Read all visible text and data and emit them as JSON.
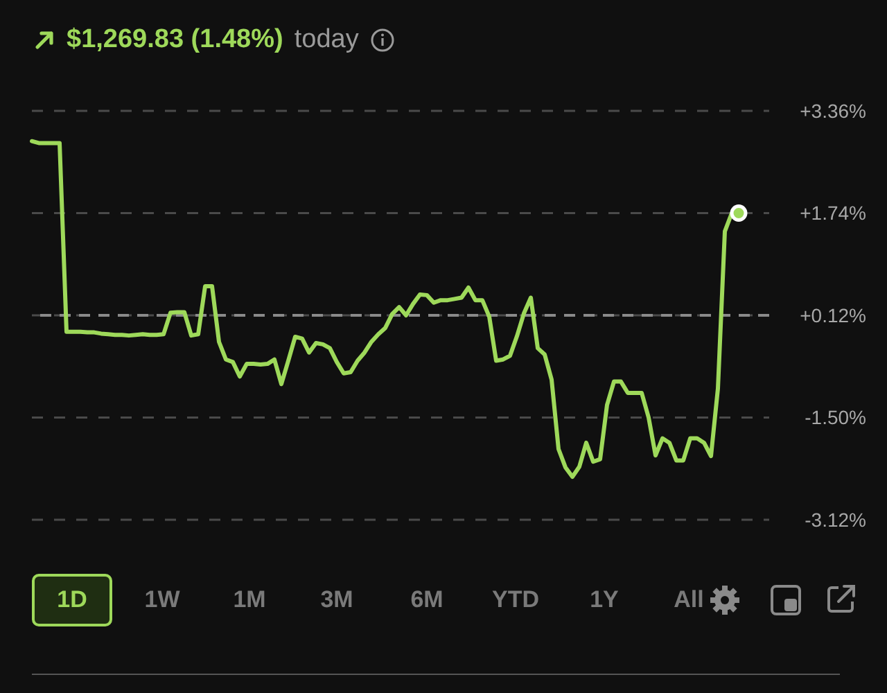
{
  "chart_data": {
    "type": "line",
    "title": "$1,269.83 (1.48%)",
    "subtitle": "today",
    "categories": [
      null,
      null,
      null,
      null,
      null,
      null,
      null,
      null,
      null,
      null,
      null,
      null,
      null,
      null,
      null,
      null,
      null,
      null,
      null,
      null,
      null,
      null,
      null,
      null,
      null,
      null,
      null,
      null,
      null,
      null,
      null,
      null,
      null,
      null,
      null,
      null,
      null,
      null,
      null,
      null,
      null,
      null,
      null,
      null,
      null,
      null,
      null,
      null,
      null,
      null,
      null,
      null,
      null,
      null,
      null,
      null,
      null,
      null,
      null,
      null,
      null,
      null,
      null,
      null,
      null,
      null,
      null,
      null,
      null,
      null,
      null,
      null,
      null,
      null,
      null,
      null,
      null,
      null,
      null,
      null,
      null,
      null,
      null,
      null,
      null,
      null,
      null,
      null,
      null,
      null,
      null,
      null,
      null,
      null,
      null,
      null,
      null,
      null,
      null,
      null,
      null,
      null,
      null
    ],
    "series": [
      {
        "color": "#9ed95a",
        "values": [
          2.88,
          2.85,
          2.85,
          2.85,
          2.85,
          -0.14,
          -0.14,
          -0.14,
          -0.15,
          -0.15,
          -0.17,
          -0.18,
          -0.19,
          -0.19,
          -0.2,
          -0.19,
          -0.18,
          -0.19,
          -0.19,
          -0.18,
          0.16,
          0.17,
          0.17,
          -0.2,
          -0.18,
          0.58,
          0.58,
          -0.3,
          -0.58,
          -0.62,
          -0.85,
          -0.65,
          -0.65,
          -0.66,
          -0.65,
          -0.58,
          -0.97,
          -0.6,
          -0.22,
          -0.25,
          -0.47,
          -0.32,
          -0.34,
          -0.4,
          -0.62,
          -0.8,
          -0.78,
          -0.6,
          -0.47,
          -0.3,
          -0.18,
          -0.08,
          0.14,
          0.25,
          0.12,
          0.3,
          0.45,
          0.44,
          0.32,
          0.36,
          0.36,
          0.38,
          0.4,
          0.56,
          0.36,
          0.36,
          0.1,
          -0.6,
          -0.58,
          -0.52,
          -0.21,
          0.15,
          0.4,
          -0.4,
          -0.5,
          -0.9,
          -2.0,
          -2.29,
          -2.44,
          -2.28,
          -1.9,
          -2.2,
          -2.16,
          -1.3,
          -0.93,
          -0.93,
          -1.11,
          -1.11,
          -1.11,
          -1.5,
          -2.1,
          -1.83,
          -1.9,
          -2.18,
          -2.18,
          -1.83,
          -1.83,
          -1.9,
          -2.11,
          -1.04,
          1.45,
          1.74,
          1.74
        ]
      }
    ],
    "ylim": [
      -3.12,
      3.36
    ],
    "yticks": [
      {
        "value": 3.36,
        "label": "+3.36%"
      },
      {
        "value": 1.74,
        "label": "+1.74%"
      },
      {
        "value": 0.12,
        "label": "+0.12%"
      },
      {
        "value": -1.5,
        "label": "-1.50%"
      },
      {
        "value": -3.12,
        "label": "-3.12%"
      }
    ],
    "grid": "y",
    "ref_lines": [
      {
        "axis": "y",
        "value": 0.12,
        "color": "#8a8a8a",
        "line_style": "dashed"
      }
    ],
    "annotations": [
      "1D",
      "1W",
      "1M",
      "3M",
      "6M",
      "YTD",
      "1Y",
      "All"
    ]
  }
}
